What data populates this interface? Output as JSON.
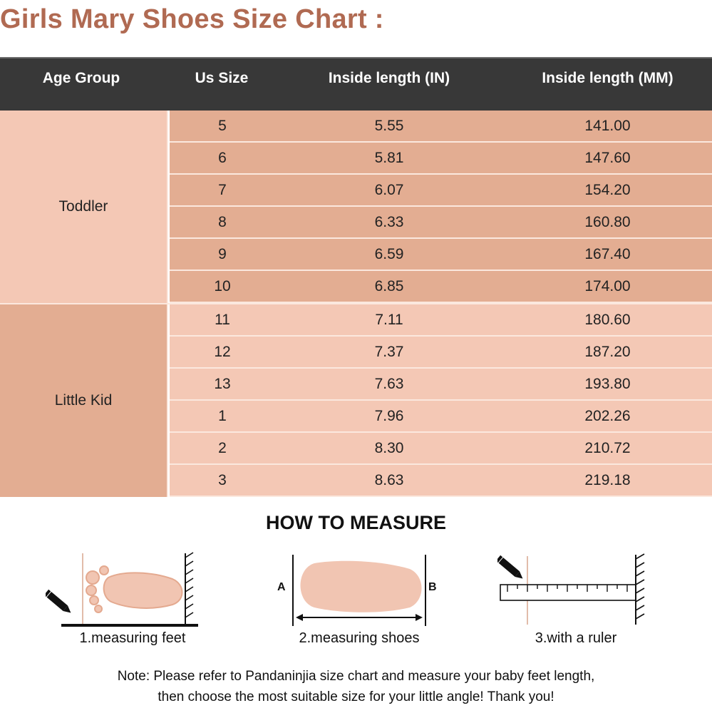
{
  "title": "Girls Mary Shoes Size Chart :",
  "table": {
    "headers": [
      "Age Group",
      "Us Size",
      "Inside length (IN)",
      "Inside length (MM)"
    ],
    "groups": [
      {
        "label": "Toddler",
        "rows": [
          {
            "us": "5",
            "in": "5.55",
            "mm": "141.00"
          },
          {
            "us": "6",
            "in": "5.81",
            "mm": "147.60"
          },
          {
            "us": "7",
            "in": "6.07",
            "mm": "154.20"
          },
          {
            "us": "8",
            "in": "6.33",
            "mm": "160.80"
          },
          {
            "us": "9",
            "in": "6.59",
            "mm": "167.40"
          },
          {
            "us": "10",
            "in": "6.85",
            "mm": "174.00"
          }
        ]
      },
      {
        "label": "Little Kid",
        "rows": [
          {
            "us": "11",
            "in": "7.11",
            "mm": "180.60"
          },
          {
            "us": "12",
            "in": "7.37",
            "mm": "187.20"
          },
          {
            "us": "13",
            "in": "7.63",
            "mm": "193.80"
          },
          {
            "us": "1",
            "in": "7.96",
            "mm": "202.26"
          },
          {
            "us": "2",
            "in": "8.30",
            "mm": "210.72"
          },
          {
            "us": "3",
            "in": "8.63",
            "mm": "219.18"
          }
        ]
      }
    ]
  },
  "how_to": {
    "heading": "HOW TO MEASURE",
    "steps": [
      {
        "caption": "1.measuring feet",
        "icon": "foot-icon"
      },
      {
        "caption": "2.measuring shoes",
        "icon": "shoe-sole-icon",
        "label_a": "A",
        "label_b": "B"
      },
      {
        "caption": "3.with a ruler",
        "icon": "ruler-icon"
      }
    ]
  },
  "note": {
    "line1": "Note: Please refer to Pandaninjia size chart and measure your baby feet length,",
    "line2": "then choose the most suitable size for your little angle! Thank you!"
  },
  "colors": {
    "title": "#b06a52",
    "header_bg": "#383838",
    "toddler_row": "#e3ad92",
    "toddler_group": "#f4c8b5",
    "kid_row": "#f4c8b5",
    "kid_group": "#e3ad92"
  }
}
